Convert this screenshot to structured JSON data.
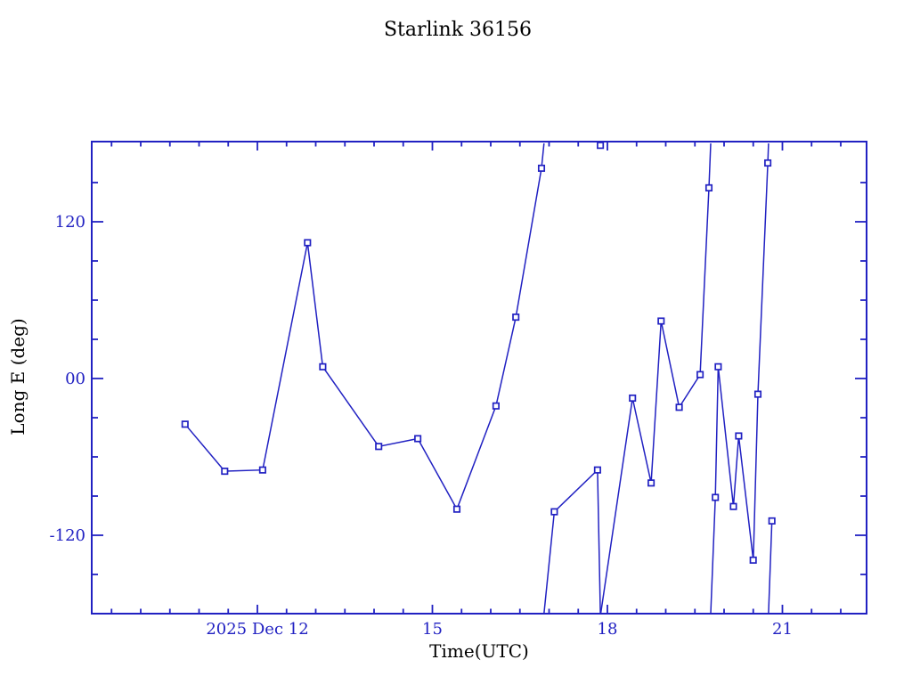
{
  "title": "Starlink 36156",
  "axes": {
    "xlabel": "Time(UTC)",
    "ylabel": "Long E (deg)",
    "x_ticks": [
      {
        "day": 12,
        "label": "2025 Dec 12"
      },
      {
        "day": 15,
        "label": "15"
      },
      {
        "day": 18,
        "label": "18"
      },
      {
        "day": 21,
        "label": "21"
      }
    ],
    "y_ticks": [
      {
        "value": 120,
        "label": "120"
      },
      {
        "value": 0,
        "label": "00"
      },
      {
        "value": -120,
        "label": "-120"
      }
    ],
    "x_range_days": [
      9.16,
      22.44
    ],
    "y_range": [
      -180,
      180
    ],
    "x_minor_step_days": 0.5,
    "y_minor_step_deg": 30
  },
  "colors": {
    "ink": "#2121c2",
    "background": "#ffffff",
    "marker_fill": "#ffffff"
  },
  "chart_data": {
    "type": "line",
    "title": "Starlink 36156",
    "xlabel": "Time(UTC)",
    "ylabel": "Long E (deg)",
    "x_unit": "day of 2025 Dec (UTC)",
    "ylim": [
      -180,
      180
    ],
    "xlim_days": [
      9.16,
      22.44
    ],
    "wrap_at_deg": 180,
    "marker": "open-square",
    "grid": false,
    "legend": "none",
    "series": [
      {
        "name": "Long E (deg)",
        "points": [
          [
            10.76,
            -35
          ],
          [
            11.44,
            -71
          ],
          [
            12.09,
            -70
          ],
          [
            12.86,
            104
          ],
          [
            13.12,
            9
          ],
          [
            14.08,
            -52
          ],
          [
            14.75,
            -46
          ],
          [
            15.42,
            -100
          ],
          [
            16.09,
            -21
          ],
          [
            16.43,
            47
          ],
          [
            16.87,
            161
          ],
          [
            17.09,
            -102
          ],
          [
            17.83,
            -70
          ],
          [
            17.88,
            178.5
          ],
          [
            18.43,
            -15
          ],
          [
            18.75,
            -80
          ],
          [
            18.92,
            44
          ],
          [
            19.23,
            -22
          ],
          [
            19.59,
            3
          ],
          [
            19.74,
            146
          ],
          [
            19.85,
            -91
          ],
          [
            19.9,
            9
          ],
          [
            20.16,
            -98
          ],
          [
            20.25,
            -44
          ],
          [
            20.5,
            -139
          ],
          [
            20.58,
            -12
          ],
          [
            20.75,
            165
          ],
          [
            20.82,
            -109
          ]
        ]
      }
    ]
  }
}
